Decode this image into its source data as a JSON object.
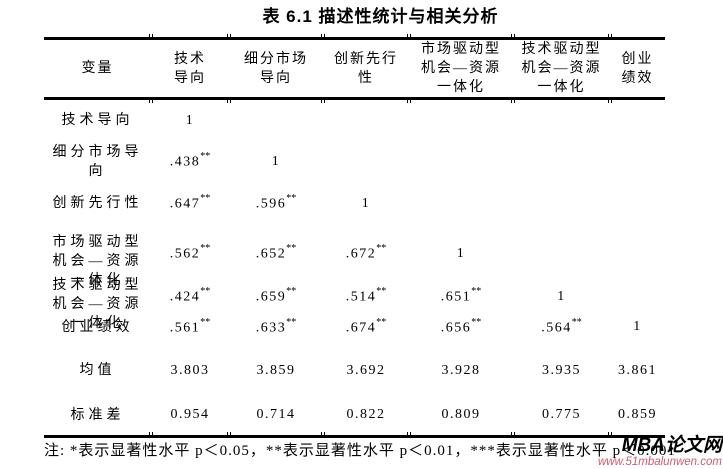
{
  "title": "表 6.1 描述性统计与相关分析",
  "colors": {
    "ink": "#000000",
    "background": "#ffffff",
    "watermark_url": "#c9606e"
  },
  "table": {
    "header": [
      "变量",
      "技术\n导向",
      "细分市场\n导向",
      "创新先行\n性",
      "市场驱动型\n机会—资源\n一体化",
      "技术驱动型\n机会—资源\n一体化",
      "创业\n绩效"
    ],
    "rows": [
      {
        "label": "技术导向",
        "cells": [
          {
            "r": "1",
            "sig": ""
          },
          null,
          null,
          null,
          null,
          null
        ]
      },
      {
        "label": "细分市场导\n向",
        "cells": [
          {
            "r": ".438",
            "sig": "**"
          },
          {
            "r": "1",
            "sig": ""
          },
          null,
          null,
          null,
          null
        ]
      },
      {
        "label": "创新先行性",
        "cells": [
          {
            "r": ".647",
            "sig": "**"
          },
          {
            "r": ".596",
            "sig": "**"
          },
          {
            "r": "1",
            "sig": ""
          },
          null,
          null,
          null
        ]
      },
      {
        "label": "市场驱动型\n机会—资源\n一体化",
        "cells": [
          {
            "r": ".562",
            "sig": "**"
          },
          {
            "r": ".652",
            "sig": "**"
          },
          {
            "r": ".672",
            "sig": "**"
          },
          {
            "r": "1",
            "sig": ""
          },
          null,
          null
        ]
      },
      {
        "label": "技术驱动型\n机会—资源\n一体化",
        "cells": [
          {
            "r": ".424",
            "sig": "**"
          },
          {
            "r": ".659",
            "sig": "**"
          },
          {
            "r": ".514",
            "sig": "**"
          },
          {
            "r": ".651",
            "sig": "**"
          },
          {
            "r": "1",
            "sig": ""
          },
          null
        ]
      },
      {
        "label": "创业绩效",
        "cells": [
          {
            "r": ".561",
            "sig": "**"
          },
          {
            "r": ".633",
            "sig": "**"
          },
          {
            "r": ".674",
            "sig": "**"
          },
          {
            "r": ".656",
            "sig": "**"
          },
          {
            "r": ".564",
            "sig": "**"
          },
          {
            "r": "1",
            "sig": ""
          }
        ]
      }
    ],
    "summary_rows": [
      {
        "label": "均值",
        "values": [
          "3.803",
          "3.859",
          "3.692",
          "3.928",
          "3.935",
          "3.861"
        ]
      },
      {
        "label": "标准差",
        "values": [
          "0.954",
          "0.714",
          "0.822",
          "0.809",
          "0.775",
          "0.859"
        ]
      }
    ]
  },
  "footnote": "注: *表示显著性水平 p＜0.05，**表示显著性水平 p＜0.01，***表示显著性水平 p＜0.001",
  "watermark": {
    "name": "MBA论文网",
    "url": "www.51mbalunwen.com"
  }
}
